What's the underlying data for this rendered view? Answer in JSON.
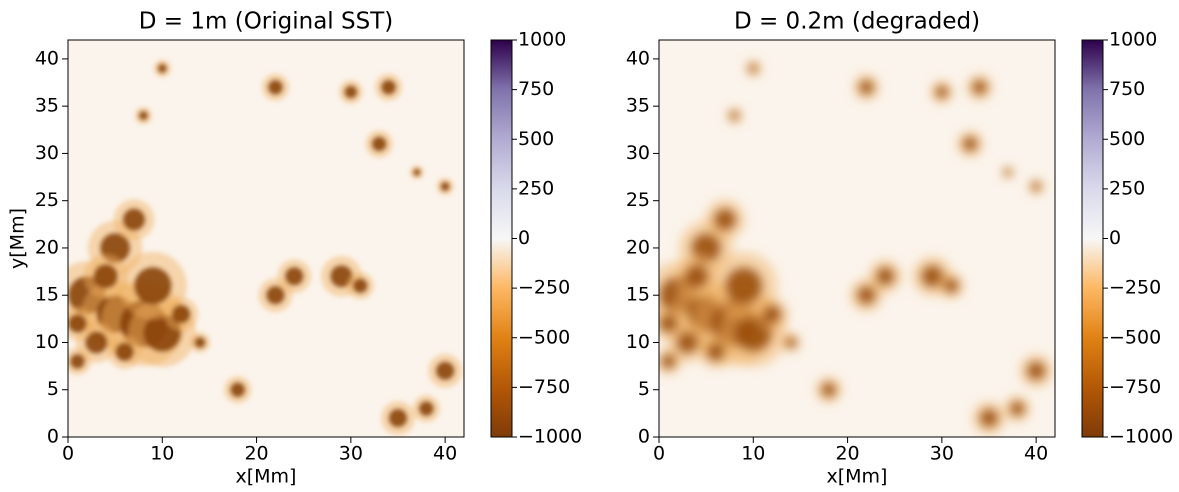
{
  "chart_data": [
    {
      "type": "heatmap",
      "title": "D = 1m (Original SST)",
      "xlabel": "x[Mm]",
      "ylabel": "y[Mm]",
      "xlim": [
        0,
        42
      ],
      "ylim": [
        0,
        42
      ],
      "xticks": [
        0,
        10,
        20,
        30,
        40
      ],
      "yticks": [
        0,
        5,
        10,
        15,
        20,
        25,
        30,
        35,
        40
      ],
      "colorbar": {
        "lim": [
          -1000,
          1000
        ],
        "ticks": [
          {
            "value": -1000,
            "label": "−1000"
          },
          {
            "value": -750,
            "label": "−750"
          },
          {
            "value": -500,
            "label": "−500"
          },
          {
            "value": -250,
            "label": "−250"
          },
          0,
          250,
          500,
          750,
          1000
        ],
        "colors": [
          "#7f3b08",
          "#b35806",
          "#e08214",
          "#fdb863",
          "#f7f7f7",
          "#d8daeb",
          "#b2abd2",
          "#8073ac",
          "#2d004b"
        ]
      }
    },
    {
      "type": "heatmap",
      "title": "D = 0.2m (degraded)",
      "xlabel": "x[Mm]",
      "xlim": [
        0,
        42
      ],
      "ylim": [
        0,
        42
      ],
      "xticks": [
        0,
        10,
        20,
        30,
        40
      ],
      "yticks": [
        0,
        5,
        10,
        15,
        20,
        25,
        30,
        35,
        40
      ],
      "colorbar": {
        "lim": [
          -1000,
          1000
        ],
        "ticks": [
          {
            "value": -1000,
            "label": "−1000"
          },
          {
            "value": -750,
            "label": "−750"
          },
          {
            "value": -500,
            "label": "−500"
          },
          {
            "value": -250,
            "label": "−250"
          },
          0,
          250,
          500,
          750,
          1000
        ],
        "colors": [
          "#7f3b08",
          "#b35806",
          "#e08214",
          "#fdb863",
          "#f7f7f7",
          "#d8daeb",
          "#b2abd2",
          "#8073ac",
          "#2d004b"
        ]
      }
    }
  ]
}
